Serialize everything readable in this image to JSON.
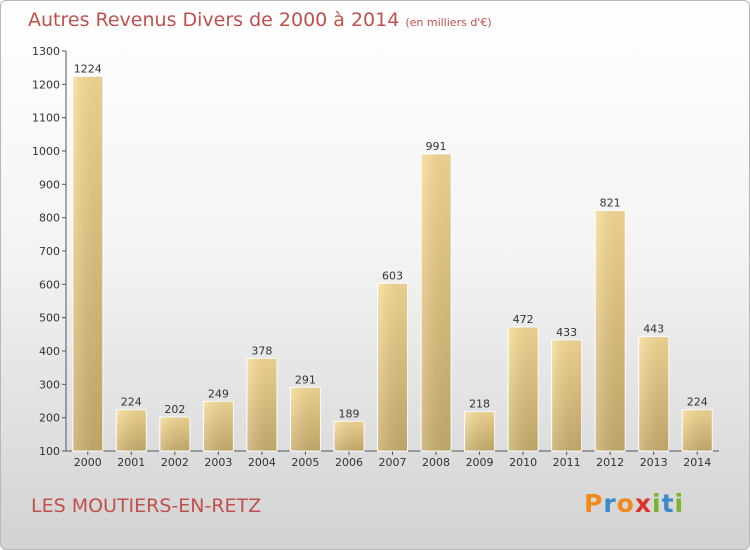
{
  "title": "Autres Revenus Divers de 2000 à 2014",
  "subtitle": "(en milliers d'€)",
  "commune": "LES MOUTIERS-EN-RETZ",
  "logo": {
    "letters": [
      "P",
      "r",
      "o",
      "x",
      "i",
      "t",
      "i"
    ],
    "colors": [
      "#f08a1c",
      "#3a89c9",
      "#f08a1c",
      "#d9342b",
      "#7bb32e",
      "#3a89c9",
      "#7bb32e"
    ]
  },
  "chart_data": {
    "type": "bar",
    "categories": [
      "2000",
      "2001",
      "2002",
      "2003",
      "2004",
      "2005",
      "2006",
      "2007",
      "2008",
      "2009",
      "2010",
      "2011",
      "2012",
      "2013",
      "2014"
    ],
    "values": [
      1224,
      224,
      202,
      249,
      378,
      291,
      189,
      603,
      991,
      218,
      472,
      433,
      821,
      443,
      224
    ],
    "ylim": [
      100,
      1300
    ],
    "yticks": [
      100,
      200,
      300,
      400,
      500,
      600,
      700,
      800,
      900,
      1000,
      1100,
      1200,
      1300
    ],
    "grid": false
  }
}
